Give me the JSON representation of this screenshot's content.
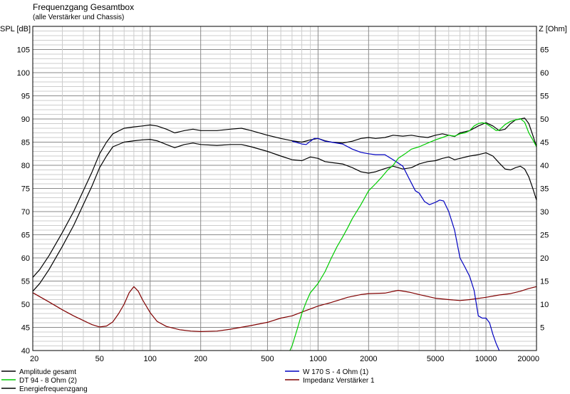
{
  "chart_data": {
    "type": "line",
    "title": "Frequenzgang Gesamtbox",
    "subtitle": "(alle Verstärker und Chassis)",
    "ylabel_left": "SPL [dB]",
    "ylabel_right": "Z [Ohm]",
    "xscale": "log",
    "xlim": [
      20,
      20000
    ],
    "ylim_left": [
      40,
      110
    ],
    "ylim_right": [
      0,
      70
    ],
    "x_ticks": [
      "20",
      "50",
      "100",
      "200",
      "500",
      "1000",
      "2000",
      "5000",
      "10000",
      "20000"
    ],
    "y_ticks_left": [
      "40",
      "45",
      "50",
      "55",
      "60",
      "65",
      "70",
      "75",
      "80",
      "85",
      "90",
      "95",
      "100",
      "105"
    ],
    "y_ticks_right": [
      "5",
      "10",
      "15",
      "20",
      "25",
      "30",
      "35",
      "40",
      "45",
      "50",
      "55",
      "60",
      "65"
    ],
    "grid": true,
    "series": [
      {
        "name": "Amplitude gesamt",
        "axis": "left",
        "color": "#000000",
        "x": [
          20,
          22,
          25,
          30,
          35,
          40,
          45,
          50,
          55,
          60,
          70,
          80,
          90,
          100,
          110,
          125,
          140,
          160,
          180,
          200,
          250,
          300,
          350,
          400,
          500,
          600,
          700,
          800,
          900,
          1000,
          1100,
          1200,
          1400,
          1600,
          1800,
          2000,
          2200,
          2500,
          2800,
          3200,
          3600,
          4000,
          4500,
          5000,
          5500,
          6000,
          6500,
          7000,
          8000,
          9000,
          10000,
          11000,
          12000,
          13000,
          14000,
          15000,
          16000,
          17000,
          18000,
          19000,
          20000
        ],
        "y": [
          55.8,
          57.5,
          60.5,
          65.5,
          70,
          74.5,
          78.5,
          82.5,
          85,
          86.8,
          88,
          88.3,
          88.5,
          88.7,
          88.5,
          87.8,
          87,
          87.5,
          87.8,
          87.5,
          87.5,
          87.8,
          88,
          87.5,
          86.5,
          85.8,
          85.3,
          85,
          85.5,
          85.8,
          85.3,
          85,
          84.8,
          85.2,
          85.8,
          86,
          85.8,
          86,
          86.5,
          86.3,
          86.5,
          86.2,
          86,
          86.5,
          86.8,
          86.5,
          86.2,
          87,
          87.5,
          88.5,
          89.2,
          88.5,
          87.5,
          87.8,
          89,
          89.8,
          90,
          90.2,
          89,
          86.5,
          84
        ]
      },
      {
        "name": "Energiefrequenzgang",
        "axis": "left",
        "color": "#000000",
        "x": [
          20,
          22,
          25,
          30,
          35,
          40,
          45,
          50,
          55,
          60,
          70,
          80,
          90,
          100,
          110,
          125,
          140,
          160,
          180,
          200,
          250,
          300,
          350,
          400,
          500,
          600,
          700,
          800,
          900,
          1000,
          1100,
          1200,
          1400,
          1600,
          1800,
          2000,
          2200,
          2500,
          2800,
          3200,
          3600,
          4000,
          4500,
          5000,
          5500,
          6000,
          6500,
          7000,
          8000,
          9000,
          10000,
          11000,
          12000,
          13000,
          14000,
          15000,
          16000,
          17000,
          18000,
          19000,
          20000
        ],
        "y": [
          52.8,
          54.5,
          57.5,
          62.5,
          67,
          71.5,
          75.5,
          79.5,
          82,
          84,
          85,
          85.3,
          85.5,
          85.6,
          85.3,
          84.5,
          83.8,
          84.5,
          84.8,
          84.5,
          84.3,
          84.5,
          84.5,
          84,
          83,
          82,
          81.2,
          81,
          81.8,
          81.5,
          80.8,
          80.6,
          80.3,
          79.5,
          78.6,
          78.3,
          78.6,
          79.3,
          79.8,
          79.2,
          79.5,
          80.3,
          80.8,
          81,
          81.5,
          81.8,
          81.2,
          81.5,
          82,
          82.3,
          82.7,
          82,
          80.5,
          79.2,
          79,
          79.5,
          79.8,
          79.2,
          77.5,
          75,
          72.5
        ]
      },
      {
        "name": "W 170 S - 4 Ohm (1)",
        "axis": "left",
        "color": "#0000c0",
        "x": [
          700,
          800,
          850,
          900,
          950,
          1000,
          1100,
          1200,
          1400,
          1600,
          1800,
          2000,
          2200,
          2500,
          2800,
          3000,
          3200,
          3500,
          3800,
          4000,
          4300,
          4600,
          5000,
          5300,
          5600,
          6000,
          6500,
          7000,
          7500,
          8000,
          8500,
          9000,
          9500,
          10000,
          10500,
          11000,
          11500,
          12000
        ],
        "y": [
          85.2,
          84.6,
          84.5,
          85.2,
          85.8,
          85.8,
          85.2,
          85,
          84.6,
          83.5,
          82.8,
          82.5,
          82.3,
          82.3,
          81.2,
          80.5,
          79.8,
          77,
          74.5,
          74,
          72.2,
          71.5,
          72,
          72.5,
          72.3,
          70,
          66,
          60,
          58,
          56,
          53,
          47.5,
          47,
          47,
          46,
          43.5,
          41.5,
          40
        ]
      },
      {
        "name": "DT 94 - 8 Ohm (2)",
        "axis": "left",
        "color": "#00cc00",
        "x": [
          680,
          700,
          750,
          800,
          850,
          900,
          950,
          1000,
          1100,
          1200,
          1300,
          1400,
          1500,
          1600,
          1800,
          2000,
          2200,
          2400,
          2600,
          2800,
          3000,
          3300,
          3600,
          4000,
          4500,
          5000,
          5500,
          6000,
          6500,
          7000,
          7500,
          8000,
          8500,
          9000,
          9500,
          10000,
          10500,
          11000,
          11500,
          12000,
          13000,
          14000,
          15000,
          16000,
          17000,
          18000,
          19000,
          20000
        ],
        "y": [
          40,
          41,
          44.5,
          48,
          50.5,
          52.5,
          53.5,
          54.5,
          57,
          60,
          62.5,
          64.5,
          66.5,
          68.5,
          71.5,
          74.5,
          76,
          77.5,
          79,
          80,
          81.5,
          82.5,
          83.5,
          84,
          84.8,
          85.5,
          86,
          86.5,
          86.3,
          86.8,
          87,
          87.5,
          88.5,
          89,
          89.2,
          89,
          88.5,
          88,
          87.5,
          87.6,
          88.8,
          89.5,
          89.8,
          90.1,
          89.3,
          87,
          85.5,
          84
        ]
      },
      {
        "name": "Impedanz Verstärker 1",
        "axis": "right",
        "color": "#800000",
        "x": [
          20,
          25,
          30,
          35,
          40,
          45,
          50,
          55,
          60,
          65,
          70,
          75,
          80,
          85,
          90,
          100,
          110,
          125,
          150,
          175,
          200,
          250,
          300,
          400,
          500,
          600,
          700,
          800,
          1000,
          1200,
          1500,
          1800,
          2000,
          2500,
          3000,
          3500,
          4000,
          5000,
          6000,
          7000,
          8000,
          10000,
          12000,
          14000,
          16000,
          18000,
          20000
        ],
        "y": [
          12.5,
          10.5,
          8.8,
          7.5,
          6.5,
          5.6,
          5.1,
          5.3,
          6.2,
          8,
          10,
          12.5,
          13.8,
          12.8,
          11,
          8.2,
          6.3,
          5.2,
          4.5,
          4.2,
          4.1,
          4.2,
          4.6,
          5.4,
          6.1,
          7.0,
          7.5,
          8.3,
          9.6,
          10.4,
          11.5,
          12.1,
          12.3,
          12.4,
          13.0,
          12.6,
          12.1,
          11.3,
          11.0,
          10.8,
          11.0,
          11.5,
          12.0,
          12.3,
          12.8,
          13.4,
          13.8
        ]
      }
    ],
    "legend": [
      {
        "label": "Amplitude gesamt",
        "color": "#000000"
      },
      {
        "label": "DT 94 - 8 Ohm (2)",
        "color": "#00cc00"
      },
      {
        "label": "Energiefrequenzgang",
        "color": "#000000"
      },
      {
        "label": "W 170 S - 4 Ohm (1)",
        "color": "#0000c0"
      },
      {
        "label": "Impedanz Verstärker 1",
        "color": "#800000"
      }
    ]
  }
}
